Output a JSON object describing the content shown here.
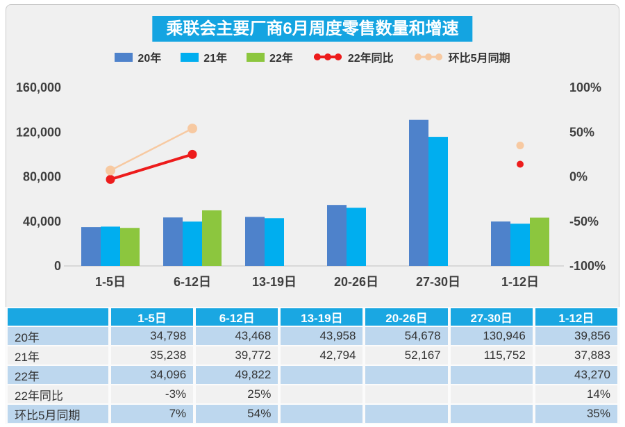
{
  "title": "乘联会主要厂商6月周度零售数量和增速",
  "colors": {
    "title_bg": "#14A4E1",
    "header_bg": "#1AA7E2",
    "bar_20": "#4E82CB",
    "bar_21": "#00AEEF",
    "bar_22": "#8CC63E",
    "line_yoy": "#ED1C1C",
    "line_mom": "#F7C9A1",
    "row_alt": "#BDD7EE",
    "row_base": "#F1F1F1",
    "axis_text": "#3F3F3F",
    "baseline": "#D8D8D8",
    "panel_bg": "#F0F0F0"
  },
  "legend": [
    {
      "label": "20年",
      "type": "bar",
      "color_key": "bar_20"
    },
    {
      "label": "21年",
      "type": "bar",
      "color_key": "bar_21"
    },
    {
      "label": "22年",
      "type": "bar",
      "color_key": "bar_22"
    },
    {
      "label": "22年同比",
      "type": "line",
      "color_key": "line_yoy"
    },
    {
      "label": "环比5月同期",
      "type": "line",
      "color_key": "line_mom"
    }
  ],
  "chart_data": {
    "type": "bar+line",
    "title": "乘联会主要厂商6月周度零售数量和增速",
    "categories": [
      "1-5日",
      "6-12日",
      "13-19日",
      "20-26日",
      "27-30日",
      "1-12日"
    ],
    "bar_series": [
      {
        "name": "20年",
        "color_key": "bar_20",
        "values": [
          34798,
          43468,
          43958,
          54678,
          130946,
          39856
        ]
      },
      {
        "name": "21年",
        "color_key": "bar_21",
        "values": [
          35238,
          39772,
          42794,
          52167,
          115752,
          37883
        ]
      },
      {
        "name": "22年",
        "color_key": "bar_22",
        "values": [
          34096,
          49822,
          null,
          null,
          null,
          43270
        ]
      }
    ],
    "line_series": [
      {
        "name": "22年同比",
        "color_key": "line_yoy",
        "values_pct": [
          -3,
          25,
          null,
          null,
          null,
          14
        ]
      },
      {
        "name": "环比5月同期",
        "color_key": "line_mom",
        "values_pct": [
          7,
          54,
          null,
          null,
          null,
          35
        ]
      }
    ],
    "left_axis": {
      "min": 0,
      "max": 160000,
      "ticks": [
        "0",
        "40,000",
        "80,000",
        "120,000",
        "160,000"
      ]
    },
    "right_axis": {
      "min": -100,
      "max": 100,
      "ticks": [
        "-100%",
        "-50%",
        "0%",
        "50%",
        "100%"
      ]
    },
    "grid": false,
    "legend_position": "top"
  },
  "table": {
    "header": [
      "",
      "1-5日",
      "6-12日",
      "13-19日",
      "20-26日",
      "27-30日",
      "1-12日"
    ],
    "rows": [
      {
        "label": "20年",
        "cells": [
          "34,798",
          "43,468",
          "43,958",
          "54,678",
          "130,946",
          "39,856"
        ]
      },
      {
        "label": "21年",
        "cells": [
          "35,238",
          "39,772",
          "42,794",
          "52,167",
          "115,752",
          "37,883"
        ]
      },
      {
        "label": "22年",
        "cells": [
          "34,096",
          "49,822",
          "",
          "",
          "",
          "43,270"
        ]
      },
      {
        "label": "22年同比",
        "cells": [
          "-3%",
          "25%",
          "",
          "",
          "",
          "14%"
        ]
      },
      {
        "label": "环比5月同期",
        "cells": [
          "7%",
          "54%",
          "",
          "",
          "",
          "35%"
        ]
      }
    ]
  }
}
